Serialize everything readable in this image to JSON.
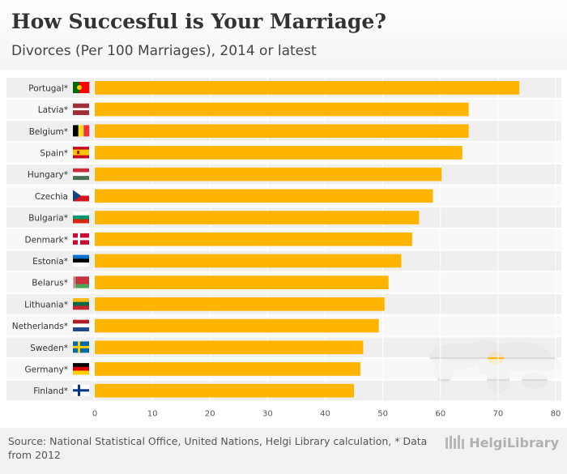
{
  "chart_data": {
    "type": "bar",
    "orientation": "horizontal",
    "title": "How Succesful is Your Marriage?",
    "subtitle": "Divorces (Per 100 Marriages), 2014 or latest",
    "categories": [
      "Portugal*",
      "Latvia*",
      "Belgium*",
      "Spain*",
      "Hungary*",
      "Czechia",
      "Bulgaria*",
      "Denmark*",
      "Estonia*",
      "Belarus*",
      "Lithuania*",
      "Netherlands*",
      "Sweden*",
      "Germany*",
      "Finland*"
    ],
    "values": [
      73.7,
      64.9,
      64.9,
      63.8,
      60.2,
      58.7,
      56.3,
      55.1,
      53.2,
      51.0,
      50.3,
      49.3,
      46.6,
      46.1,
      45.0
    ],
    "xlim": [
      0,
      80
    ],
    "xticks": [
      0,
      10,
      20,
      30,
      40,
      50,
      60,
      70,
      80
    ],
    "bar_color": "#ffb400",
    "xlabel": "",
    "ylabel": "",
    "legend": "none"
  },
  "flags": [
    {
      "name": "portugal-flag",
      "stripes": "v",
      "colors": [
        "#006600",
        "#ff0000"
      ],
      "ratio": [
        2,
        3
      ]
    },
    {
      "name": "latvia-flag",
      "stripes": "h",
      "colors": [
        "#9e3039",
        "#ffffff",
        "#9e3039"
      ],
      "ratio": [
        2,
        1,
        2
      ]
    },
    {
      "name": "belgium-flag",
      "stripes": "v",
      "colors": [
        "#000000",
        "#fdda24",
        "#ef3340"
      ],
      "ratio": [
        1,
        1,
        1
      ]
    },
    {
      "name": "spain-flag",
      "stripes": "h",
      "colors": [
        "#c60b1e",
        "#ffc400",
        "#c60b1e"
      ],
      "ratio": [
        1,
        2,
        1
      ]
    },
    {
      "name": "hungary-flag",
      "stripes": "h",
      "colors": [
        "#ce2939",
        "#ffffff",
        "#477050"
      ],
      "ratio": [
        1,
        1,
        1
      ]
    },
    {
      "name": "czechia-flag",
      "stripes": "cz",
      "colors": [
        "#ffffff",
        "#d7141a",
        "#11457e"
      ],
      "ratio": [
        1,
        1
      ]
    },
    {
      "name": "bulgaria-flag",
      "stripes": "h",
      "colors": [
        "#ffffff",
        "#00966e",
        "#d62612"
      ],
      "ratio": [
        1,
        1,
        1
      ]
    },
    {
      "name": "denmark-flag",
      "stripes": "cross",
      "colors": [
        "#c60c30",
        "#ffffff"
      ],
      "ratio": [
        1
      ]
    },
    {
      "name": "estonia-flag",
      "stripes": "h",
      "colors": [
        "#0072ce",
        "#000000",
        "#ffffff"
      ],
      "ratio": [
        1,
        1,
        1
      ]
    },
    {
      "name": "belarus-flag",
      "stripes": "h",
      "colors": [
        "#c8313e",
        "#4aa657"
      ],
      "ratio": [
        2,
        1
      ]
    },
    {
      "name": "lithuania-flag",
      "stripes": "h",
      "colors": [
        "#fdb913",
        "#006a44",
        "#c1272d"
      ],
      "ratio": [
        1,
        1,
        1
      ]
    },
    {
      "name": "netherlands-flag",
      "stripes": "h",
      "colors": [
        "#ae1c28",
        "#ffffff",
        "#21468b"
      ],
      "ratio": [
        1,
        1,
        1
      ]
    },
    {
      "name": "sweden-flag",
      "stripes": "cross",
      "colors": [
        "#006aa7",
        "#fecc00"
      ],
      "ratio": [
        1
      ]
    },
    {
      "name": "germany-flag",
      "stripes": "h",
      "colors": [
        "#000000",
        "#dd0000",
        "#ffce00"
      ],
      "ratio": [
        1,
        1,
        1
      ]
    },
    {
      "name": "finland-flag",
      "stripes": "cross",
      "colors": [
        "#ffffff",
        "#003580"
      ],
      "ratio": [
        1
      ]
    }
  ],
  "footer": {
    "source": "Source: National Statistical Office, United Nations, Helgi Library calculation, * Data from 2012",
    "brand": "HelgiLibrary"
  }
}
